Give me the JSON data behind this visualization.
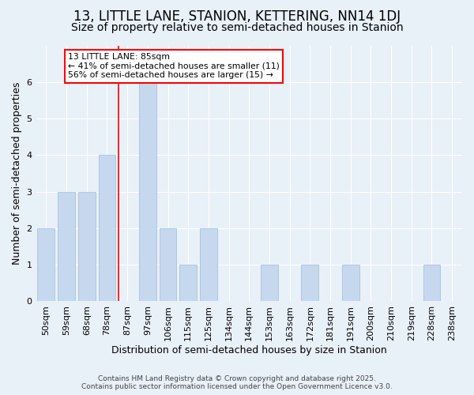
{
  "title": "13, LITTLE LANE, STANION, KETTERING, NN14 1DJ",
  "subtitle": "Size of property relative to semi-detached houses in Stanion",
  "xlabel": "Distribution of semi-detached houses by size in Stanion",
  "ylabel": "Number of semi-detached properties",
  "categories": [
    "50sqm",
    "59sqm",
    "68sqm",
    "78sqm",
    "87sqm",
    "97sqm",
    "106sqm",
    "115sqm",
    "125sqm",
    "134sqm",
    "144sqm",
    "153sqm",
    "163sqm",
    "172sqm",
    "181sqm",
    "191sqm",
    "200sqm",
    "210sqm",
    "219sqm",
    "228sqm",
    "238sqm"
  ],
  "values": [
    2,
    3,
    3,
    4,
    0,
    6,
    2,
    1,
    2,
    0,
    0,
    1,
    0,
    1,
    0,
    1,
    0,
    0,
    0,
    1,
    0
  ],
  "bar_color": "#c5d8ed",
  "bar_edge_color": "#a0bcd8",
  "red_line_index": 4,
  "annotation_title": "13 LITTLE LANE: 85sqm",
  "annotation_line1": "← 41% of semi-detached houses are smaller (11)",
  "annotation_line2": "56% of semi-detached houses are larger (15) →",
  "footer_line1": "Contains HM Land Registry data © Crown copyright and database right 2025.",
  "footer_line2": "Contains public sector information licensed under the Open Government Licence v3.0.",
  "ylim": [
    0,
    7
  ],
  "yticks": [
    0,
    1,
    2,
    3,
    4,
    5,
    6,
    7
  ],
  "bg_color": "#e8f0f8",
  "title_fontsize": 12,
  "subtitle_fontsize": 10,
  "axis_label_fontsize": 9,
  "tick_fontsize": 8,
  "footer_fontsize": 6.5
}
